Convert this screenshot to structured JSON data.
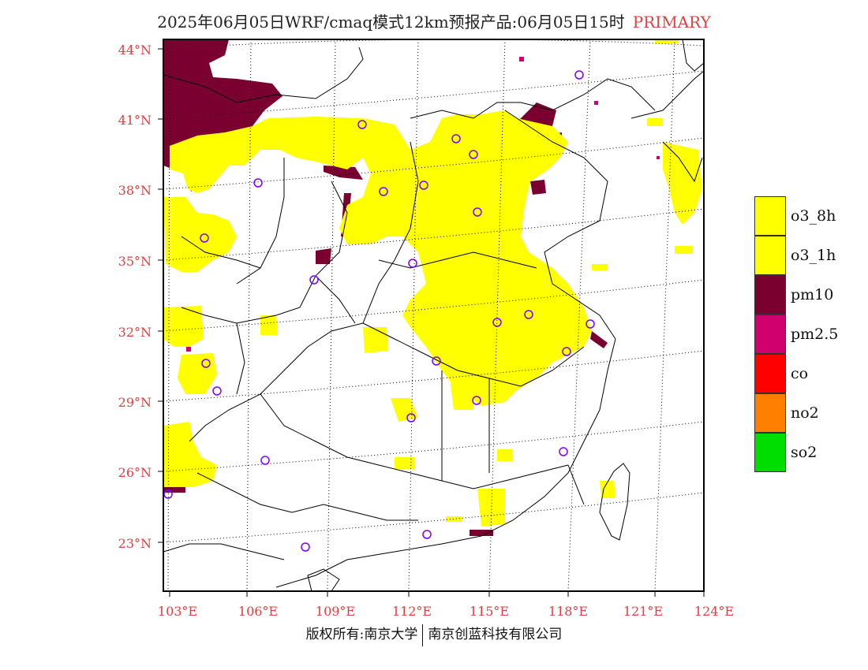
{
  "title": {
    "main": "2025年06月05日WRF/cmaq模式12km预报产品:06月05日15时",
    "tag": "PRIMARY"
  },
  "axes": {
    "lat_labels": [
      "44°N",
      "41°N",
      "38°N",
      "35°N",
      "32°N",
      "29°N",
      "26°N",
      "23°N"
    ],
    "lon_labels": [
      "103°E",
      "106°E",
      "109°E",
      "112°E",
      "115°E",
      "118°E",
      "121°E",
      "124°E"
    ],
    "label_color": "#e04040"
  },
  "legend": [
    {
      "label": "o3_8h",
      "color": "#ffff00"
    },
    {
      "label": "o3_1h",
      "color": "#ffff00"
    },
    {
      "label": "pm10",
      "color": "#7a0030"
    },
    {
      "label": "pm2.5",
      "color": "#d0006f"
    },
    {
      "label": "co",
      "color": "#ff0000"
    },
    {
      "label": "no2",
      "color": "#ff7f00"
    },
    {
      "label": "so2",
      "color": "#00dd00"
    }
  ],
  "footer": {
    "left": "版权所有:南京大学",
    "right": "南京创蓝科技有限公司"
  }
}
